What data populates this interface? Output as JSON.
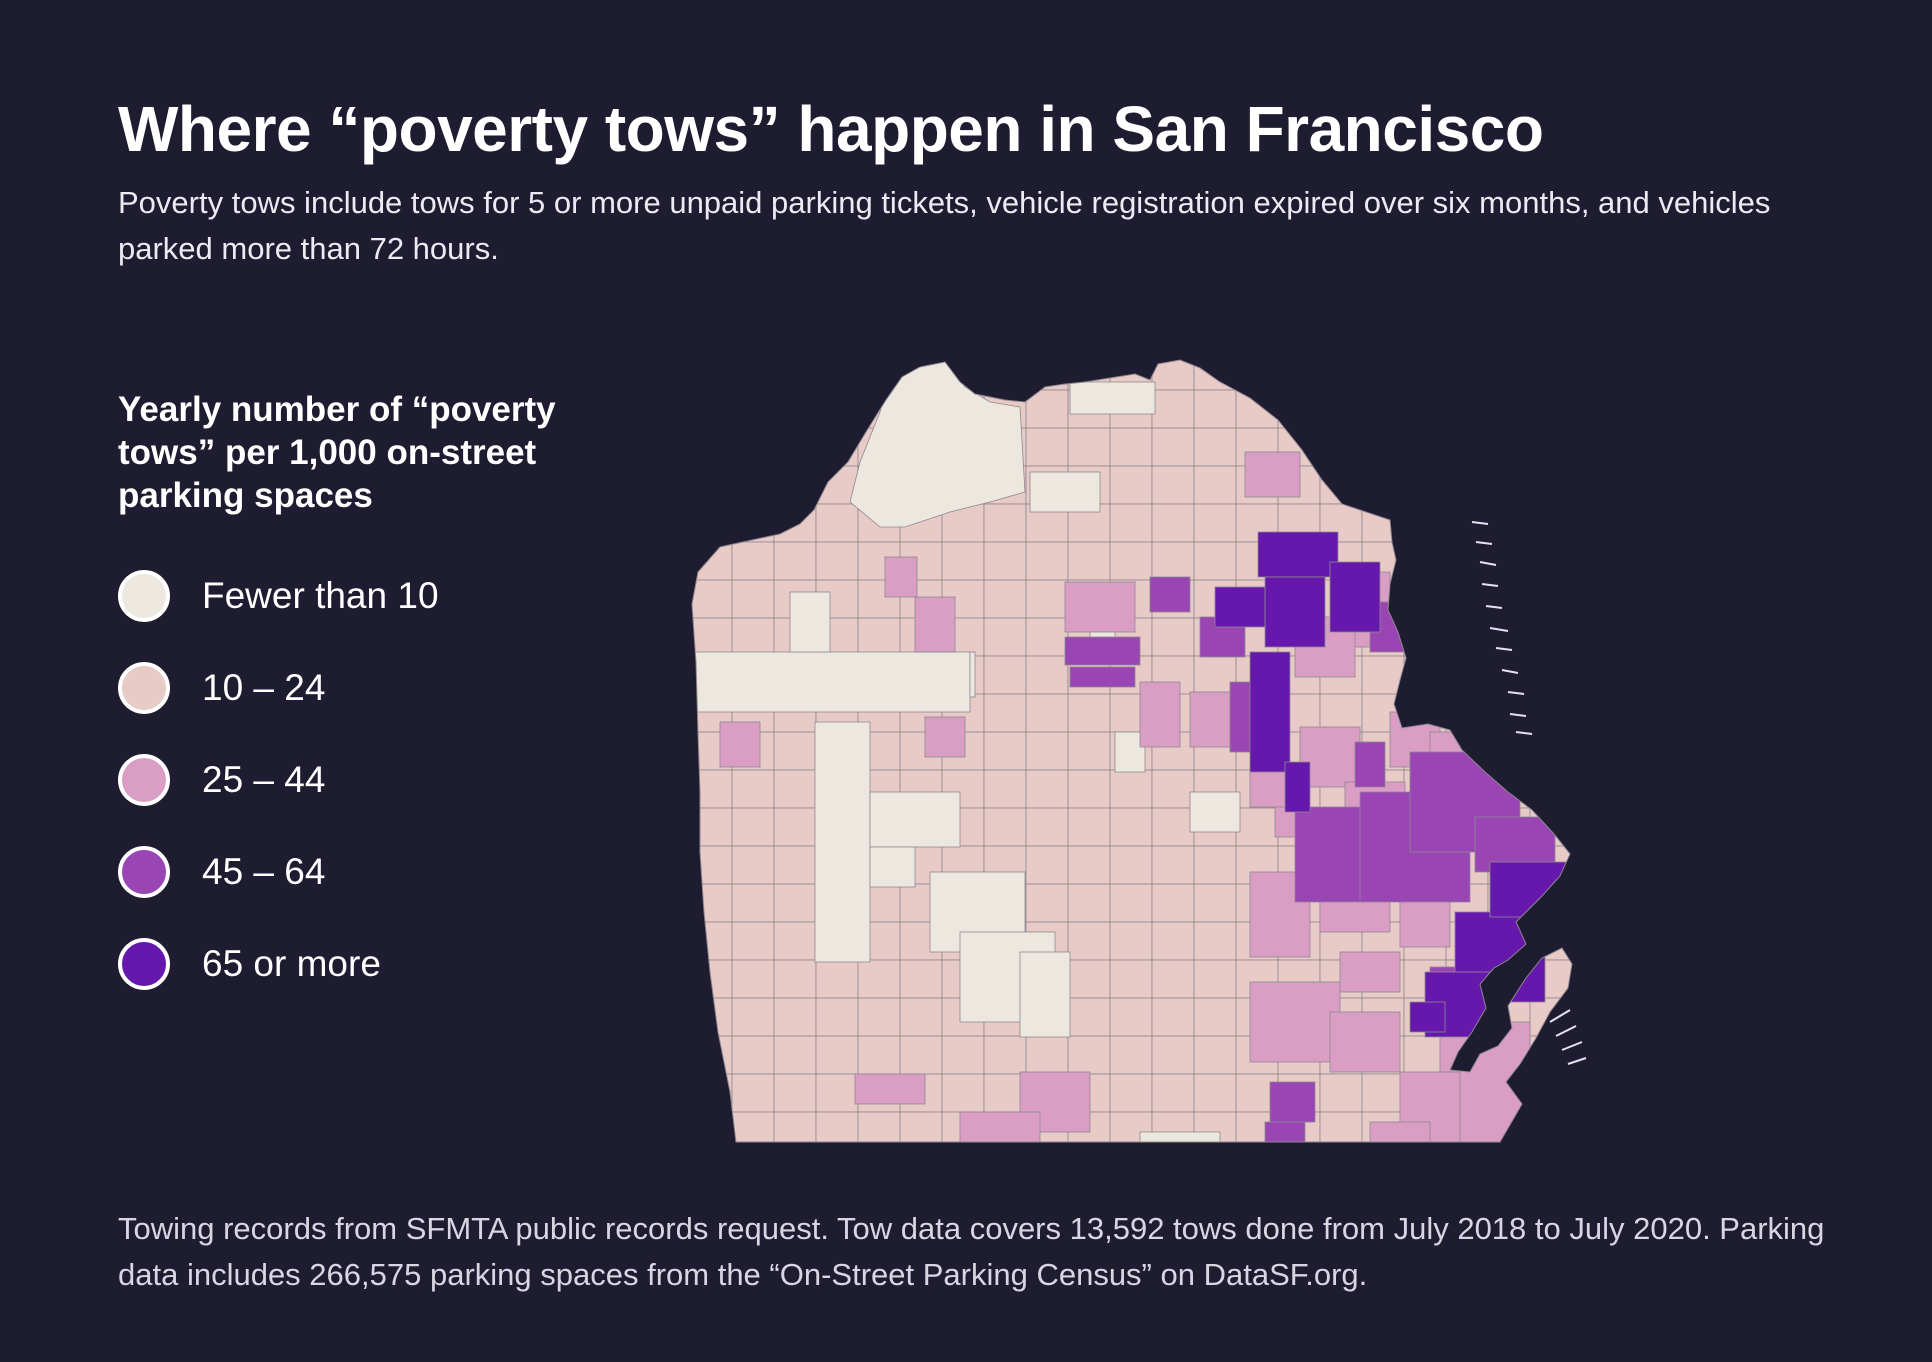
{
  "title": "Where “poverty tows” happen in San Francisco",
  "subtitle": "Poverty tows include tows for 5 or more unpaid parking tickets, vehicle registration expired over six months, and vehicles parked more than 72 hours.",
  "legend": {
    "title": "Yearly number of “poverty tows” per 1,000 on-street parking spaces",
    "items": [
      {
        "label": "Fewer than 10",
        "color": "#ede8df"
      },
      {
        "label": "10 – 24",
        "color": "#e8cac7"
      },
      {
        "label": "25 – 44",
        "color": "#da9ec4"
      },
      {
        "label": "45 – 64",
        "color": "#9945b3"
      },
      {
        "label": "65 or more",
        "color": "#6618ad"
      }
    ]
  },
  "map": {
    "region": "San Francisco",
    "background": "#1e1c30",
    "tract_border": "#8f8790",
    "land_color": "#e8cac7"
  },
  "footnote": "Towing records from SFMTA public records request. Tow data covers 13,592 tows done from July 2018 to July 2020. Parking data includes 266,575 parking spaces from the “On-Street Parking Census” on DataSF.org."
}
